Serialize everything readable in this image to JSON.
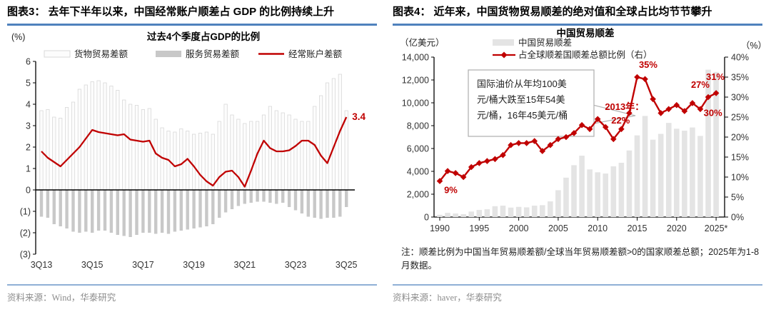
{
  "colors": {
    "red": "#c00000",
    "header_rule": "#4f81bd",
    "footer_rule": "#8fb0d6",
    "axis": "#1a1a1a",
    "goods_fill": "#fcfcfc",
    "goods_stroke": "#d8d8d8",
    "services_fill": "#c8c8c8",
    "bar_fill": "#e4e4e4",
    "callout_stroke": "#b3b3b3",
    "tick_text": "#333333"
  },
  "fig3": {
    "header": "图表3：  去年下半年以来，中国经常账户顺差占 GDP 的比例持续上升",
    "source": "资料来源：Wind，华泰研究",
    "chart_data": {
      "type": "bar+line",
      "title": "过去4个季度占GDP的比例",
      "y_unit": "(%)",
      "ylim": [
        -3,
        6
      ],
      "yticks": [
        {
          "v": 6,
          "label": "6"
        },
        {
          "v": 5,
          "label": "5"
        },
        {
          "v": 4,
          "label": "4"
        },
        {
          "v": 3,
          "label": "3"
        },
        {
          "v": 2,
          "label": "2"
        },
        {
          "v": 1,
          "label": "1"
        },
        {
          "v": 0,
          "label": "0"
        },
        {
          "v": -1,
          "label": "(1)"
        },
        {
          "v": -2,
          "label": "(2)"
        },
        {
          "v": -3,
          "label": "(3)"
        }
      ],
      "xticks": [
        {
          "i": 0,
          "label": "3Q13"
        },
        {
          "i": 8,
          "label": "3Q15"
        },
        {
          "i": 16,
          "label": "3Q17"
        },
        {
          "i": 24,
          "label": "3Q19"
        },
        {
          "i": 32,
          "label": "3Q21"
        },
        {
          "i": 40,
          "label": "3Q23"
        },
        {
          "i": 48,
          "label": "3Q25"
        }
      ],
      "legend": [
        {
          "label": "货物贸易差额",
          "swatch": "outline"
        },
        {
          "label": "服务贸易差额",
          "swatch": "gray"
        },
        {
          "label": "经常账户差额",
          "swatch": "line"
        }
      ],
      "series": [
        {
          "name": "货物贸易差额",
          "values": [
            3.7,
            3.75,
            3.4,
            3.35,
            3.85,
            4.1,
            4.7,
            4.9,
            5.05,
            5.1,
            5.0,
            4.85,
            4.65,
            4.2,
            4.0,
            3.95,
            3.75,
            3.8,
            3.3,
            2.9,
            2.75,
            2.7,
            2.85,
            2.75,
            2.6,
            2.65,
            2.7,
            2.6,
            3.2,
            4.0,
            3.5,
            3.3,
            3.1,
            3.2,
            3.2,
            3.5,
            3.9,
            3.7,
            3.6,
            3.5,
            3.3,
            3.2,
            3.2,
            3.9,
            4.4,
            5.0,
            5.2,
            5.4,
            3.7
          ]
        },
        {
          "name": "服务贸易差额",
          "values": [
            -1.25,
            -1.3,
            -1.6,
            -1.7,
            -1.8,
            -1.95,
            -2.0,
            -1.95,
            -2.0,
            -1.9,
            -1.9,
            -2.0,
            -2.1,
            -2.15,
            -2.2,
            -2.1,
            -2.0,
            -2.0,
            -2.05,
            -2.0,
            -2.05,
            -1.95,
            -1.9,
            -1.85,
            -1.8,
            -1.75,
            -1.7,
            -1.6,
            -1.3,
            -1.05,
            -0.9,
            -0.75,
            -0.65,
            -0.6,
            -0.55,
            -0.55,
            -0.6,
            -0.65,
            -0.6,
            -0.8,
            -0.95,
            -1.1,
            -1.25,
            -1.3,
            -1.35,
            -1.3,
            -1.3,
            -1.25,
            -0.8
          ]
        },
        {
          "name": "经常账户差额",
          "values": [
            1.8,
            1.5,
            1.3,
            1.1,
            1.4,
            1.7,
            2.0,
            2.4,
            2.8,
            2.7,
            2.65,
            2.6,
            2.55,
            2.6,
            2.35,
            2.3,
            2.25,
            2.3,
            1.7,
            1.5,
            1.4,
            1.1,
            1.2,
            1.45,
            1.1,
            0.7,
            0.4,
            0.2,
            0.6,
            0.85,
            0.9,
            0.6,
            0.15,
            0.9,
            1.7,
            2.3,
            1.95,
            1.8,
            1.8,
            1.85,
            2.05,
            2.3,
            2.3,
            2.1,
            1.6,
            1.25,
            2.0,
            2.75,
            3.4
          ]
        }
      ],
      "end_label": "3.4"
    }
  },
  "fig4": {
    "header": "图表4：  近年来，中国货物贸易顺差的绝对值和全球占比均节节攀升",
    "note": "注：顺差比例为中国当年贸易顺差额/全球当年贸易顺差额>0的国家顺差总额；2025年为1-8月数据。",
    "source": "资料来源：haver，华泰研究",
    "chart_data": {
      "type": "bar+line",
      "title": "中国贸易顺差",
      "left_unit": "（亿美元）",
      "right_unit": "（%）",
      "year_start": 1990,
      "left_ylim": [
        0,
        14000
      ],
      "right_ylim": [
        0,
        40
      ],
      "left_ticks": [
        {
          "v": 14000,
          "label": "14,000"
        },
        {
          "v": 12000,
          "label": "12,000"
        },
        {
          "v": 10000,
          "label": "10,000"
        },
        {
          "v": 8000,
          "label": "8,000"
        },
        {
          "v": 6000,
          "label": "6,000"
        },
        {
          "v": 4000,
          "label": "4,000"
        },
        {
          "v": 2000,
          "label": "2,000"
        },
        {
          "v": 0,
          "label": "0"
        }
      ],
      "right_ticks": [
        {
          "v": 40,
          "label": "40%"
        },
        {
          "v": 35,
          "label": "35%"
        },
        {
          "v": 30,
          "label": "30%"
        },
        {
          "v": 25,
          "label": "25%"
        },
        {
          "v": 20,
          "label": "20%"
        },
        {
          "v": 15,
          "label": "15%"
        },
        {
          "v": 10,
          "label": "10%"
        },
        {
          "v": 5,
          "label": "5%"
        },
        {
          "v": 0,
          "label": "0%"
        }
      ],
      "xticks": [
        {
          "year": 1990,
          "label": "1990"
        },
        {
          "year": 1995,
          "label": "1995"
        },
        {
          "year": 2000,
          "label": "2000"
        },
        {
          "year": 2005,
          "label": "2005"
        },
        {
          "year": 2010,
          "label": "2010"
        },
        {
          "year": 2015,
          "label": "2015"
        },
        {
          "year": 2020,
          "label": "2020"
        },
        {
          "year": 2025,
          "label": "2025*"
        }
      ],
      "legend": [
        {
          "label": "中国贸易顺差",
          "swatch": "bar"
        },
        {
          "label": "占全球顺差国顺差总额比例（右）",
          "swatch": "line-diamond"
        }
      ],
      "series": [
        {
          "name": "中国贸易顺差(亿美元)",
          "axis": "left",
          "values": [
            200,
            370,
            310,
            250,
            480,
            620,
            680,
            950,
            1000,
            830,
            890,
            850,
            1000,
            1040,
            1370,
            2350,
            3450,
            4540,
            5370,
            4170,
            3920,
            3810,
            4440,
            4750,
            5830,
            7150,
            8850,
            6770,
            7280,
            8240,
            7730,
            7560,
            7840,
            7100,
            12900,
            12700
          ]
        },
        {
          "name": "占全球顺差国顺差总额比例(%)",
          "axis": "right",
          "values": [
            9,
            11.5,
            11,
            10,
            12.5,
            13.5,
            14,
            14.5,
            15.5,
            18,
            18.5,
            18.5,
            19,
            16.5,
            18,
            19.5,
            20,
            21,
            23,
            22,
            24.5,
            22.5,
            19.5,
            22,
            26,
            35,
            34.5,
            29.5,
            26,
            27,
            28,
            26.5,
            28.5,
            27,
            30,
            31
          ]
        }
      ],
      "annotations": [
        {
          "text": "9%",
          "year": 1991.4,
          "pct": 6.0
        },
        {
          "text": "2013年：",
          "year": 2013.4,
          "pct": 26.8
        },
        {
          "text": "22%",
          "year": 2012.9,
          "pct": 23.4
        },
        {
          "text": "35%",
          "year": 2016.4,
          "pct": 37.3
        },
        {
          "text": "27%",
          "year": 2023.0,
          "pct": 32.3
        },
        {
          "text": "31%",
          "year": 2024.9,
          "pct": 34.3
        },
        {
          "text": "30%",
          "year": 2024.6,
          "pct": 25.3
        }
      ],
      "callout": {
        "lines": [
          "国际油价从年均100美",
          "元/桶大跌至15年54美",
          "元/桶，16年45美元/桶"
        ]
      }
    }
  }
}
